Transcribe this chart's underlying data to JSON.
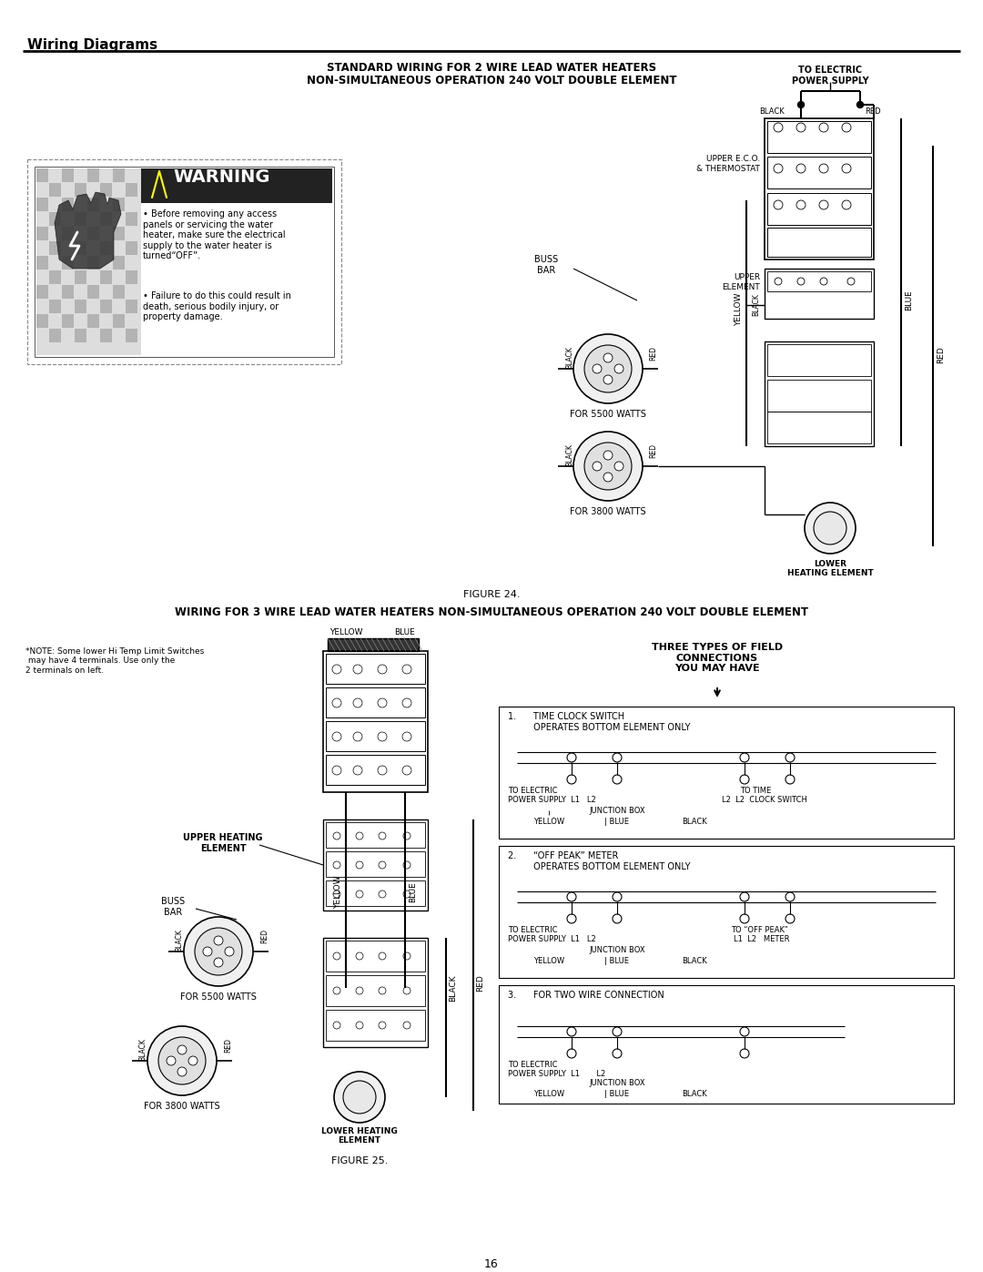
{
  "page_title": "Wiring Diagrams",
  "page_number": "16",
  "fig1_title_line1": "STANDARD WIRING FOR 2 WIRE LEAD WATER HEATERS",
  "fig1_title_line2": "NON-SIMULTANEOUS OPERATION 240 VOLT DOUBLE ELEMENT",
  "fig1_caption": "FIGURE 24.",
  "fig2_title": "WIRING FOR 3 WIRE LEAD WATER HEATERS NON-SIMULTANEOUS OPERATION 240 VOLT DOUBLE ELEMENT",
  "fig2_caption": "FIGURE 25.",
  "warning_title": "⚠ WARNING",
  "warning_bullet1": "Before removing any access\npanels or servicing the water\nheater, make sure the electrical\nsupply to the water heater is\nturned“OFF”.",
  "warning_bullet2": "Failure to do this could result in\ndeath, serious bodily injury, or\nproperty damage.",
  "bg_color": "#ffffff",
  "note_text": "*NOTE: Some lower Hi Temp Limit Switches\n may have 4 terminals. Use only the\n2 terminals on left.",
  "conn1_title_a": "1.      TIME CLOCK SWITCH",
  "conn1_title_b": "         OPERATES BOTTOM ELEMENT ONLY",
  "conn2_title_a": "2.      “OFF PEAK” METER",
  "conn2_title_b": "         OPERATES BOTTOM ELEMENT ONLY",
  "conn3_title_a": "3.      FOR TWO WIRE CONNECTION"
}
